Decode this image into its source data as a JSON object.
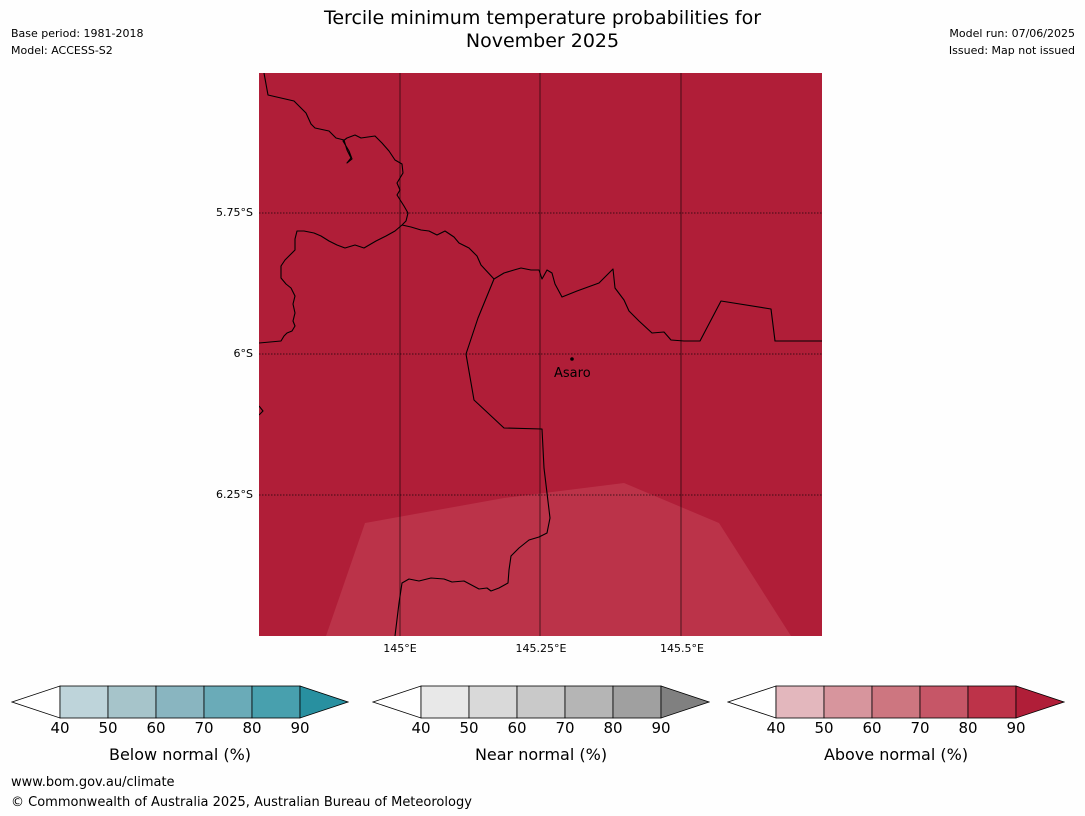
{
  "header": {
    "title_line1": "Tercile minimum temperature probabilities for",
    "title_line2": "November 2025",
    "base_period": "Base period: 1981-2018",
    "model": "Model: ACCESS-S2",
    "model_run": "Model run: 07/06/2025",
    "issued": "Issued: Map not issued"
  },
  "map": {
    "background_color": "#b01e38",
    "region_color": "#bb3349",
    "place": "Asaro",
    "lat_labels": [
      "5.75°S",
      "6°S",
      "6.25°S"
    ],
    "lon_labels": [
      "145°E",
      "145.25°E",
      "145.5°E"
    ]
  },
  "colorbars": [
    {
      "label": "Below normal (%)",
      "ticks": [
        "40",
        "50",
        "60",
        "70",
        "80",
        "90"
      ],
      "colors": [
        "#ffffff",
        "#bed4da",
        "#a6c4ca",
        "#89b5c0",
        "#6aabb8",
        "#48a0ae",
        "#2890a0"
      ]
    },
    {
      "label": "Near normal (%)",
      "ticks": [
        "40",
        "50",
        "60",
        "70",
        "80",
        "90"
      ],
      "colors": [
        "#ffffff",
        "#e8e8e8",
        "#d9d9d9",
        "#c9c9c9",
        "#b5b5b5",
        "#a0a0a0",
        "#808080"
      ]
    },
    {
      "label": "Above normal (%)",
      "ticks": [
        "40",
        "50",
        "60",
        "70",
        "80",
        "90"
      ],
      "colors": [
        "#ffffff",
        "#e3b7bd",
        "#d7959d",
        "#cd7680",
        "#c65667",
        "#bd3349",
        "#b01e38"
      ]
    }
  ],
  "footer": {
    "url": "www.bom.gov.au/climate",
    "copyright": "© Commonwealth of Australia 2025, Australian Bureau of Meteorology"
  }
}
